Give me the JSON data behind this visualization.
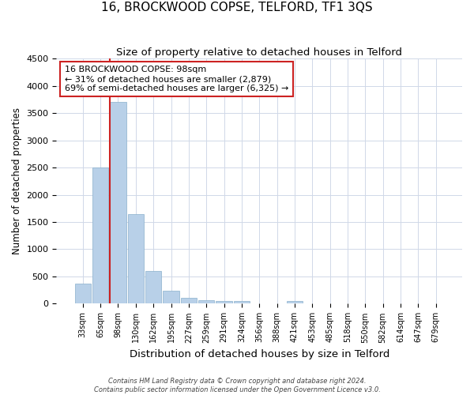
{
  "title": "16, BROCKWOOD COPSE, TELFORD, TF1 3QS",
  "subtitle": "Size of property relative to detached houses in Telford",
  "xlabel": "Distribution of detached houses by size in Telford",
  "ylabel": "Number of detached properties",
  "categories": [
    "33sqm",
    "65sqm",
    "98sqm",
    "130sqm",
    "162sqm",
    "195sqm",
    "227sqm",
    "259sqm",
    "291sqm",
    "324sqm",
    "356sqm",
    "388sqm",
    "421sqm",
    "453sqm",
    "485sqm",
    "518sqm",
    "550sqm",
    "582sqm",
    "614sqm",
    "647sqm",
    "679sqm"
  ],
  "values": [
    370,
    2500,
    3700,
    1640,
    600,
    240,
    110,
    60,
    55,
    50,
    0,
    0,
    50,
    0,
    0,
    0,
    0,
    0,
    0,
    0,
    0
  ],
  "bar_color": "#b8d0e8",
  "highlight_bar_index": 2,
  "highlight_color": "#cc2222",
  "ylim": [
    0,
    4500
  ],
  "yticks": [
    0,
    500,
    1000,
    1500,
    2000,
    2500,
    3000,
    3500,
    4000,
    4500
  ],
  "annotation_text": "16 BROCKWOOD COPSE: 98sqm\n← 31% of detached houses are smaller (2,879)\n69% of semi-detached houses are larger (6,325) →",
  "annotation_box_color": "#cc2222",
  "footer_line1": "Contains HM Land Registry data © Crown copyright and database right 2024.",
  "footer_line2": "Contains public sector information licensed under the Open Government Licence v3.0.",
  "title_fontsize": 11,
  "subtitle_fontsize": 9.5,
  "xlabel_fontsize": 9.5,
  "ylabel_fontsize": 8.5,
  "bar_edge_color": "#8ab0cc",
  "grid_color": "#d0d8e8",
  "background_color": "#ffffff"
}
